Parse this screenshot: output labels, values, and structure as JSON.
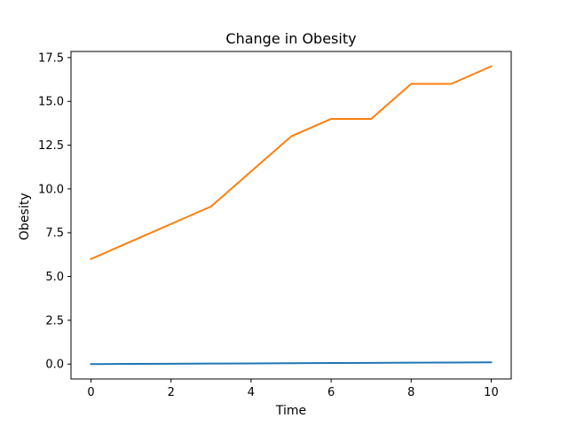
{
  "chart_data": {
    "type": "line",
    "title": "Change in Obesity",
    "xlabel": "Time",
    "ylabel": "Obesity",
    "xlim": [
      -0.5,
      10.5
    ],
    "ylim": [
      -0.85,
      17.85
    ],
    "xticks": [
      0,
      2,
      4,
      6,
      8,
      10
    ],
    "xtick_labels": [
      "0",
      "2",
      "4",
      "6",
      "8",
      "10"
    ],
    "yticks": [
      0.0,
      2.5,
      5.0,
      7.5,
      10.0,
      12.5,
      15.0,
      17.5
    ],
    "ytick_labels": [
      "0.0",
      "2.5",
      "5.0",
      "7.5",
      "10.0",
      "12.5",
      "15.0",
      "17.5"
    ],
    "grid": false,
    "legend": false,
    "x": [
      0,
      1,
      2,
      3,
      4,
      5,
      6,
      7,
      8,
      9,
      10
    ],
    "series": [
      {
        "color": "#1f77b4",
        "values": [
          0.0,
          0.01,
          0.02,
          0.03,
          0.04,
          0.05,
          0.06,
          0.07,
          0.08,
          0.09,
          0.1
        ]
      },
      {
        "color": "#ff7f0e",
        "values": [
          6,
          7,
          8,
          9,
          11,
          13,
          14,
          14,
          16,
          16,
          17
        ]
      }
    ]
  }
}
